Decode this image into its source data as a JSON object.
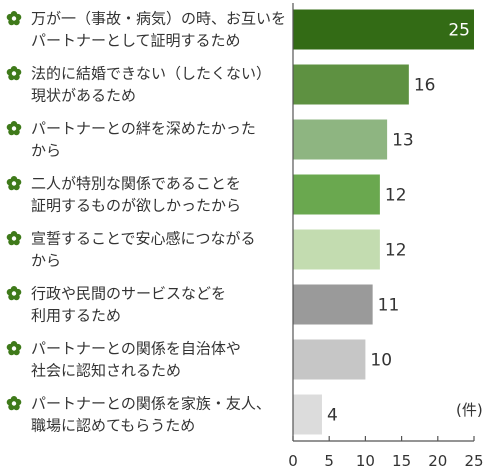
{
  "chart_data": {
    "type": "bar",
    "orientation": "horizontal",
    "categories": [
      [
        "万が一（事故・病気）の時、お互いを",
        "パートナーとして証明するため"
      ],
      [
        "法的に結婚できない（したくない）",
        "現状があるため"
      ],
      [
        "パートナーとの絆を深めたかった",
        "から"
      ],
      [
        "二人が特別な関係であることを",
        "証明するものが欲しかったから"
      ],
      [
        "宣誓することで安心感につながる",
        "から"
      ],
      [
        "行政や民間のサービスなどを",
        "利用するため"
      ],
      [
        "パートナーとの関係を自治体や",
        "社会に認知されるため"
      ],
      [
        "パートナーとの関係を家族・友人、",
        "職場に認めてもらうため"
      ]
    ],
    "values": [
      25,
      16,
      13,
      12,
      12,
      11,
      10,
      4
    ],
    "colors": [
      "#336b15",
      "#5e9141",
      "#8eb581",
      "#6aa84f",
      "#c3dcb0",
      "#9a9a9a",
      "#c6c6c6",
      "#dcdcdc"
    ],
    "xlim": [
      0,
      25
    ],
    "xticks": [
      0,
      5,
      10,
      15,
      20,
      25
    ],
    "unit_label": "(件)",
    "bullet_icon": "flower-icon",
    "bullet_color": "#3f7a1a"
  }
}
